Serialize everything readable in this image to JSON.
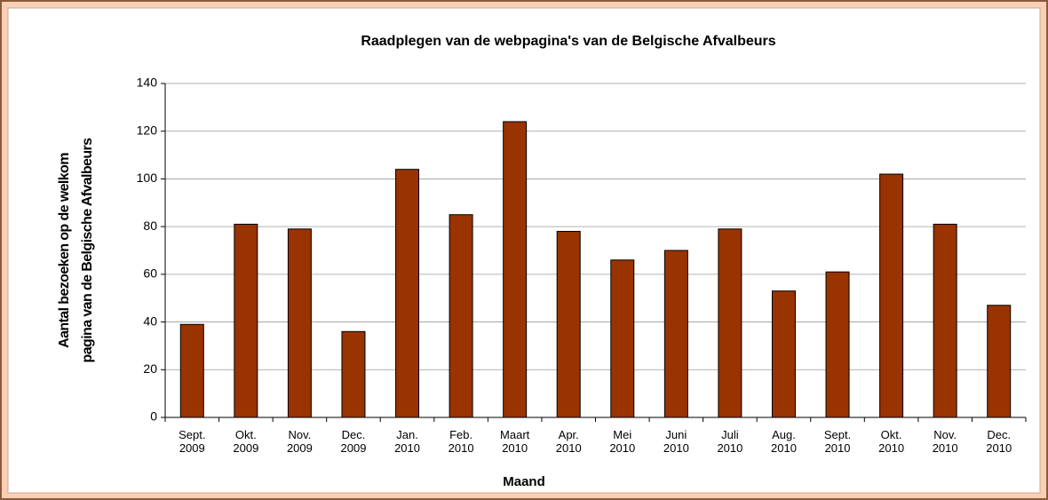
{
  "chart_data": {
    "type": "bar",
    "title": "Raadplegen van de webpagina's van de Belgische Afvalbeurs",
    "xlabel": "Maand",
    "ylabel": [
      "Aantal bezoeken op de welkom",
      "pagina van de Belgische Afvalbeurs"
    ],
    "categories": [
      "Sept. 2009",
      "Okt. 2009",
      "Nov. 2009",
      "Dec. 2009",
      "Jan. 2010",
      "Feb. 2010",
      "Maart 2010",
      "Apr. 2010",
      "Mei 2010",
      "Juni 2010",
      "Juli 2010",
      "Aug. 2010",
      "Sept. 2010",
      "Okt. 2010",
      "Nov. 2010",
      "Dec. 2010"
    ],
    "values": [
      39,
      81,
      79,
      36,
      104,
      85,
      124,
      78,
      66,
      70,
      79,
      53,
      61,
      102,
      81,
      47
    ],
    "color": "#993300",
    "ylim": [
      0,
      140
    ],
    "yticks": [
      0,
      20,
      40,
      60,
      80,
      100,
      120,
      140
    ],
    "grid": true
  }
}
